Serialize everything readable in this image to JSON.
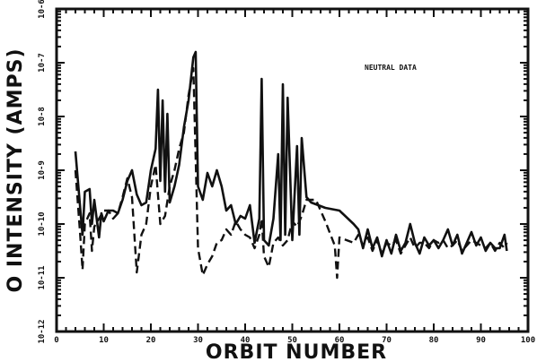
{
  "chart_data": {
    "type": "line",
    "title": "",
    "xlabel": "ORBIT NUMBER",
    "ylabel": "O INTENSITY (AMPS)",
    "xlim": [
      0,
      100
    ],
    "ylim_exponent": [
      -12,
      -6
    ],
    "yscale": "log",
    "grid": false,
    "x_ticks": [
      "0",
      "10",
      "20",
      "30",
      "40",
      "50",
      "60",
      "70",
      "80",
      "90",
      "100"
    ],
    "y_ticks": [
      {
        "exp": -12,
        "label": "10-12"
      },
      {
        "exp": -11,
        "label": "10-11"
      },
      {
        "exp": -10,
        "label": "10-10"
      },
      {
        "exp": -9,
        "label": "10-9"
      },
      {
        "exp": -8,
        "label": "10-8"
      },
      {
        "exp": -7,
        "label": "10-7"
      },
      {
        "exp": -6,
        "label": "10-6"
      }
    ],
    "annotation": "NEUTRAL DATA",
    "series": [
      {
        "style": "solid",
        "points": [
          [
            4,
            -8.65
          ],
          [
            5,
            -9.7
          ],
          [
            5.5,
            -10.2
          ],
          [
            6,
            -9.4
          ],
          [
            7,
            -9.35
          ],
          [
            7.5,
            -10.0
          ],
          [
            8,
            -9.55
          ],
          [
            9,
            -10.25
          ],
          [
            9.5,
            -9.8
          ],
          [
            10,
            -9.95
          ],
          [
            11,
            -9.75
          ],
          [
            12,
            -9.75
          ],
          [
            13,
            -9.8
          ],
          [
            14,
            -9.55
          ],
          [
            15,
            -9.2
          ],
          [
            16,
            -9.0
          ],
          [
            17,
            -9.45
          ],
          [
            18,
            -9.65
          ],
          [
            19,
            -9.6
          ],
          [
            20,
            -9.0
          ],
          [
            21,
            -8.6
          ],
          [
            21.5,
            -7.5
          ],
          [
            22,
            -9.2
          ],
          [
            22.5,
            -7.7
          ],
          [
            23,
            -9.4
          ],
          [
            23.5,
            -7.95
          ],
          [
            24,
            -9.6
          ],
          [
            25,
            -9.3
          ],
          [
            26,
            -8.9
          ],
          [
            27,
            -8.2
          ],
          [
            28,
            -7.7
          ],
          [
            29,
            -6.9
          ],
          [
            29.5,
            -6.8
          ],
          [
            30,
            -9.3
          ],
          [
            31,
            -9.55
          ],
          [
            32,
            -9.05
          ],
          [
            33,
            -9.3
          ],
          [
            34,
            -9.0
          ],
          [
            35,
            -9.3
          ],
          [
            36,
            -9.75
          ],
          [
            37,
            -9.65
          ],
          [
            38,
            -10.0
          ],
          [
            39,
            -9.85
          ],
          [
            40,
            -9.9
          ],
          [
            41,
            -9.65
          ],
          [
            42,
            -10.35
          ],
          [
            43,
            -9.9
          ],
          [
            43.5,
            -7.3
          ],
          [
            44,
            -10.3
          ],
          [
            45,
            -10.4
          ],
          [
            46,
            -9.9
          ],
          [
            47,
            -8.7
          ],
          [
            47.5,
            -10.3
          ],
          [
            48,
            -7.4
          ],
          [
            48.5,
            -10.2
          ],
          [
            49,
            -7.65
          ],
          [
            50,
            -10.3
          ],
          [
            51,
            -8.55
          ],
          [
            51.5,
            -10.2
          ],
          [
            52,
            -8.4
          ],
          [
            53,
            -9.5
          ],
          [
            54,
            -9.6
          ],
          [
            57,
            -9.7
          ],
          [
            60,
            -9.75
          ],
          [
            63,
            -10.0
          ],
          [
            64,
            -10.1
          ],
          [
            65,
            -10.45
          ],
          [
            66,
            -10.1
          ],
          [
            67,
            -10.45
          ],
          [
            68,
            -10.25
          ],
          [
            69,
            -10.6
          ],
          [
            70,
            -10.3
          ],
          [
            71,
            -10.55
          ],
          [
            72,
            -10.2
          ],
          [
            73,
            -10.5
          ],
          [
            74,
            -10.35
          ],
          [
            75,
            -10.0
          ],
          [
            76,
            -10.35
          ],
          [
            77,
            -10.55
          ],
          [
            78,
            -10.25
          ],
          [
            79,
            -10.4
          ],
          [
            80,
            -10.3
          ],
          [
            81,
            -10.45
          ],
          [
            82,
            -10.3
          ],
          [
            83,
            -10.1
          ],
          [
            84,
            -10.4
          ],
          [
            85,
            -10.2
          ],
          [
            86,
            -10.55
          ],
          [
            87,
            -10.35
          ],
          [
            88,
            -10.15
          ],
          [
            89,
            -10.4
          ],
          [
            90,
            -10.25
          ],
          [
            91,
            -10.5
          ],
          [
            92,
            -10.35
          ],
          [
            93,
            -10.45
          ],
          [
            94,
            -10.45
          ],
          [
            95,
            -10.2
          ],
          [
            95.5,
            -10.5
          ]
        ]
      },
      {
        "style": "dashed",
        "points": [
          [
            4,
            -9.0
          ],
          [
            5,
            -10.2
          ],
          [
            5.5,
            -10.85
          ],
          [
            6,
            -10.0
          ],
          [
            7,
            -9.8
          ],
          [
            7.5,
            -10.5
          ],
          [
            8,
            -10.05
          ],
          [
            9,
            -9.9
          ],
          [
            10,
            -9.75
          ],
          [
            11,
            -9.75
          ],
          [
            12,
            -9.9
          ],
          [
            13,
            -9.8
          ],
          [
            14,
            -9.5
          ],
          [
            15,
            -9.15
          ],
          [
            16,
            -9.5
          ],
          [
            17,
            -10.9
          ],
          [
            18,
            -10.2
          ],
          [
            19,
            -10.0
          ],
          [
            20,
            -9.3
          ],
          [
            21,
            -8.9
          ],
          [
            22,
            -10.0
          ],
          [
            23,
            -9.85
          ],
          [
            24,
            -9.3
          ],
          [
            25,
            -9.0
          ],
          [
            26,
            -8.6
          ],
          [
            27,
            -8.3
          ],
          [
            28,
            -7.6
          ],
          [
            29,
            -7.1
          ],
          [
            30,
            -10.45
          ],
          [
            31,
            -10.95
          ],
          [
            32,
            -10.75
          ],
          [
            33,
            -10.6
          ],
          [
            34,
            -10.35
          ],
          [
            35,
            -10.3
          ],
          [
            36,
            -10.1
          ],
          [
            37,
            -10.2
          ],
          [
            38,
            -9.95
          ],
          [
            39,
            -10.1
          ],
          [
            40,
            -10.2
          ],
          [
            41,
            -10.25
          ],
          [
            42,
            -10.45
          ],
          [
            43,
            -10.2
          ],
          [
            43.5,
            -9.9
          ],
          [
            44,
            -10.6
          ],
          [
            45,
            -10.8
          ],
          [
            46,
            -10.35
          ],
          [
            47,
            -10.25
          ],
          [
            48,
            -10.4
          ],
          [
            49,
            -10.3
          ],
          [
            50,
            -9.95
          ],
          [
            51,
            -10.05
          ],
          [
            52,
            -9.85
          ],
          [
            53,
            -9.55
          ],
          [
            55,
            -9.55
          ],
          [
            57,
            -9.95
          ],
          [
            59,
            -10.4
          ],
          [
            59.5,
            -11.0
          ],
          [
            60,
            -10.25
          ],
          [
            63,
            -10.35
          ],
          [
            64,
            -10.2
          ],
          [
            65,
            -10.4
          ],
          [
            66,
            -10.25
          ],
          [
            67,
            -10.5
          ],
          [
            68,
            -10.3
          ],
          [
            69,
            -10.55
          ],
          [
            70,
            -10.35
          ],
          [
            71,
            -10.4
          ],
          [
            72,
            -10.3
          ],
          [
            73,
            -10.55
          ],
          [
            74,
            -10.4
          ],
          [
            75,
            -10.25
          ],
          [
            76,
            -10.45
          ],
          [
            77,
            -10.35
          ],
          [
            78,
            -10.35
          ],
          [
            79,
            -10.45
          ],
          [
            80,
            -10.3
          ],
          [
            81,
            -10.35
          ],
          [
            82,
            -10.3
          ],
          [
            83,
            -10.45
          ],
          [
            84,
            -10.4
          ],
          [
            85,
            -10.3
          ],
          [
            86,
            -10.5
          ],
          [
            87,
            -10.4
          ],
          [
            88,
            -10.3
          ],
          [
            89,
            -10.35
          ],
          [
            90,
            -10.4
          ],
          [
            91,
            -10.45
          ],
          [
            92,
            -10.35
          ],
          [
            93,
            -10.5
          ],
          [
            94,
            -10.35
          ],
          [
            95,
            -10.45
          ],
          [
            95.5,
            -10.35
          ]
        ]
      }
    ]
  }
}
